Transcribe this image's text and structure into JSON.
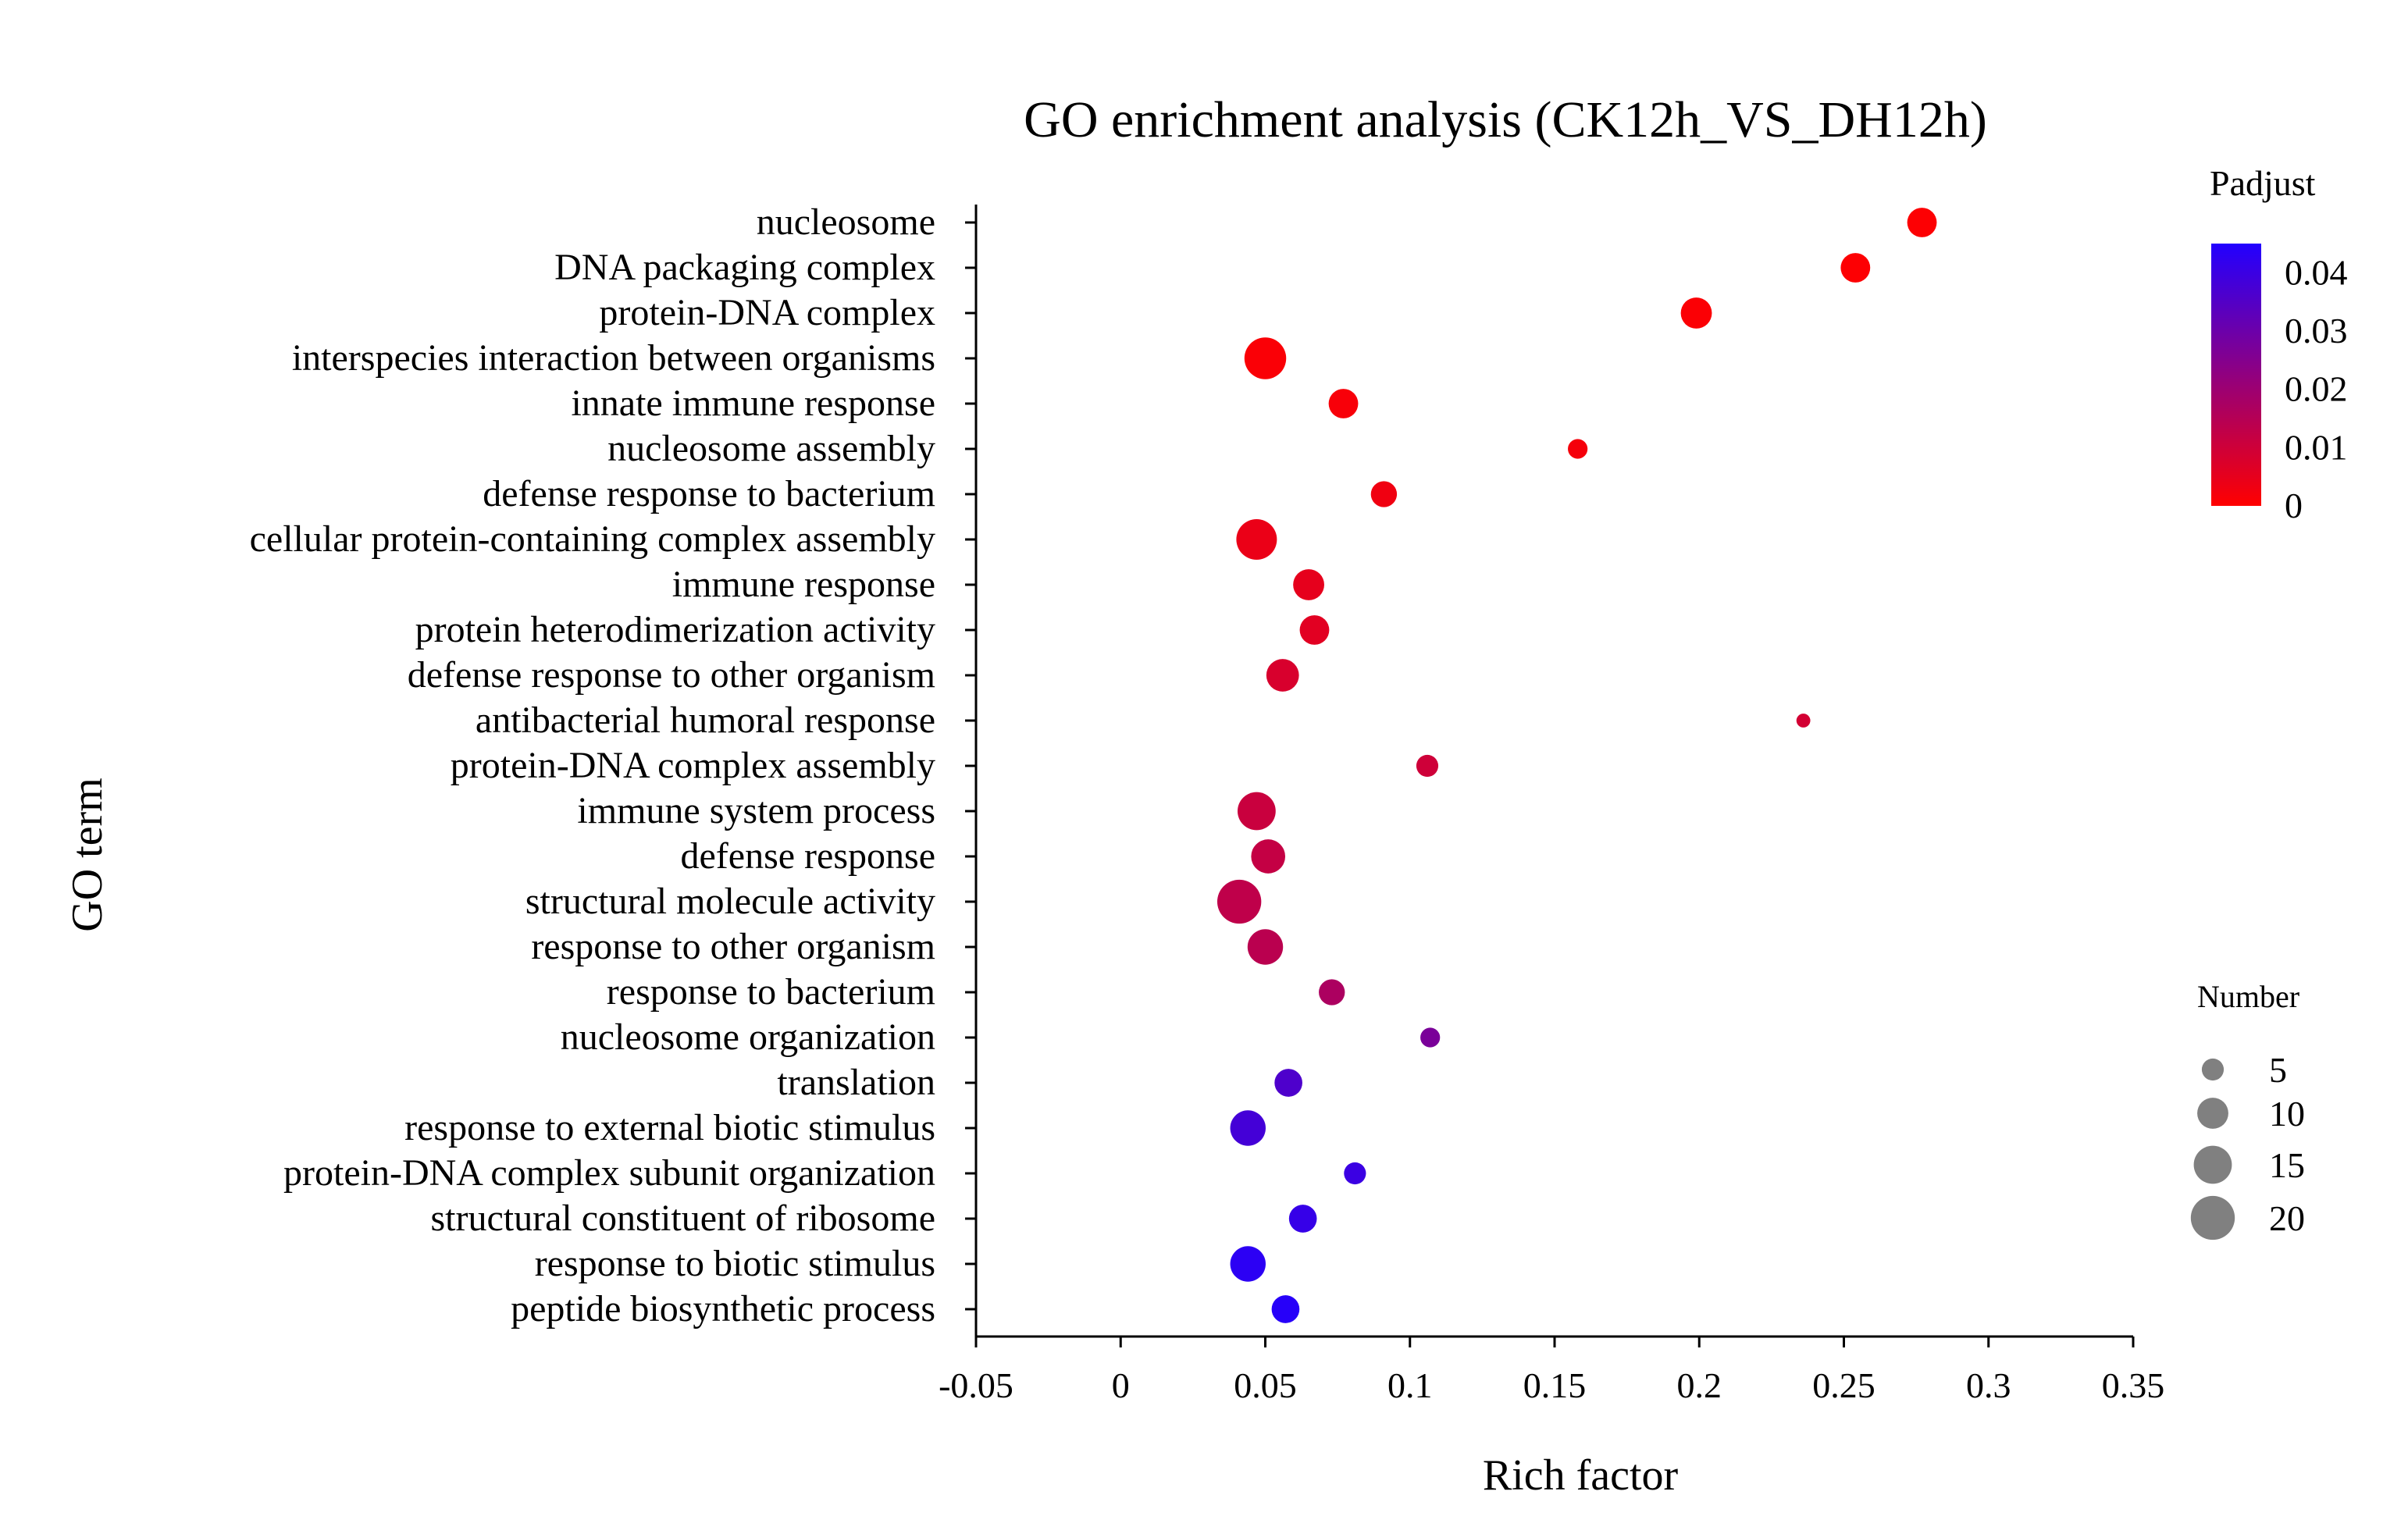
{
  "chart_data": {
    "type": "scatter",
    "title": "GO enrichment analysis (CK12h_VS_DH12h)",
    "xlabel": "Rich factor",
    "ylabel": "GO term",
    "xlim": [
      -0.05,
      0.35
    ],
    "x_ticks": [
      "-0.05",
      "0",
      "0.05",
      "0.1",
      "0.15",
      "0.2",
      "0.25",
      "0.3",
      "0.35"
    ],
    "x_tick_values": [
      -0.05,
      0,
      0.05,
      0.1,
      0.15,
      0.2,
      0.25,
      0.3,
      0.35
    ],
    "color_legend": {
      "title": "Padjust",
      "min": 0,
      "max": 0.045,
      "low_color": "#ff0000",
      "high_color": "#2200ff",
      "ticks": [
        "0",
        "0.01",
        "0.02",
        "0.03",
        "0.04"
      ],
      "tick_values": [
        0,
        0.01,
        0.02,
        0.03,
        0.04
      ]
    },
    "size_legend": {
      "title": "Number",
      "color": "#808080",
      "labels": [
        "5",
        "10",
        "15",
        "20"
      ],
      "values": [
        5,
        10,
        15,
        20
      ]
    },
    "points": [
      {
        "term": "nucleosome",
        "rich_factor": 0.277,
        "number": 9,
        "padjust": 0.0005
      },
      {
        "term": "DNA packaging complex",
        "rich_factor": 0.254,
        "number": 9,
        "padjust": 0.0005
      },
      {
        "term": "protein-DNA complex",
        "rich_factor": 0.199,
        "number": 10,
        "padjust": 0.0008
      },
      {
        "term": "interspecies interaction between organisms",
        "rich_factor": 0.05,
        "number": 18,
        "padjust": 0.001
      },
      {
        "term": "innate immune response",
        "rich_factor": 0.077,
        "number": 9,
        "padjust": 0.0015
      },
      {
        "term": "nucleosome assembly",
        "rich_factor": 0.158,
        "number": 4,
        "padjust": 0.002
      },
      {
        "term": "defense response to bacterium",
        "rich_factor": 0.091,
        "number": 7,
        "padjust": 0.003
      },
      {
        "term": "cellular protein-containing complex assembly",
        "rich_factor": 0.047,
        "number": 17,
        "padjust": 0.004
      },
      {
        "term": "immune response",
        "rich_factor": 0.065,
        "number": 10,
        "padjust": 0.005
      },
      {
        "term": "protein heterodimerization activity",
        "rich_factor": 0.067,
        "number": 9,
        "padjust": 0.006
      },
      {
        "term": "defense response to other organism",
        "rich_factor": 0.056,
        "number": 11,
        "padjust": 0.008
      },
      {
        "term": "antibacterial humoral response",
        "rich_factor": 0.236,
        "number": 2,
        "padjust": 0.009
      },
      {
        "term": "protein-DNA complex assembly",
        "rich_factor": 0.106,
        "number": 5,
        "padjust": 0.01
      },
      {
        "term": "immune system process",
        "rich_factor": 0.047,
        "number": 15,
        "padjust": 0.011
      },
      {
        "term": "defense response",
        "rich_factor": 0.051,
        "number": 12,
        "padjust": 0.012
      },
      {
        "term": "structural molecule activity",
        "rich_factor": 0.041,
        "number": 20,
        "padjust": 0.013
      },
      {
        "term": "response to other organism",
        "rich_factor": 0.05,
        "number": 13,
        "padjust": 0.014
      },
      {
        "term": "response to bacterium",
        "rich_factor": 0.073,
        "number": 7,
        "padjust": 0.017
      },
      {
        "term": "nucleosome organization",
        "rich_factor": 0.107,
        "number": 4,
        "padjust": 0.027
      },
      {
        "term": "translation",
        "rich_factor": 0.058,
        "number": 8,
        "padjust": 0.036
      },
      {
        "term": "response to external biotic stimulus",
        "rich_factor": 0.044,
        "number": 13,
        "padjust": 0.038
      },
      {
        "term": "protein-DNA complex subunit organization",
        "rich_factor": 0.081,
        "number": 5,
        "padjust": 0.04
      },
      {
        "term": "structural constituent of ribosome",
        "rich_factor": 0.063,
        "number": 8,
        "padjust": 0.041
      },
      {
        "term": "response to  biotic stimulus",
        "rich_factor": 0.044,
        "number": 13,
        "padjust": 0.043
      },
      {
        "term": "peptide biosynthetic process",
        "rich_factor": 0.057,
        "number": 8,
        "padjust": 0.044
      }
    ]
  }
}
